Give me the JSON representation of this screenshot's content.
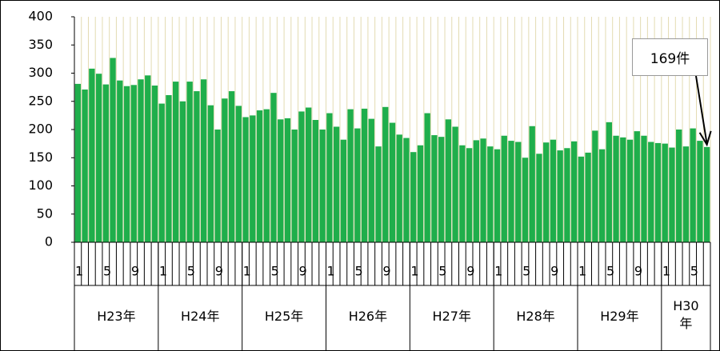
{
  "chart_data": {
    "type": "bar",
    "categories": [
      "1",
      null,
      null,
      null,
      "5",
      null,
      null,
      null,
      "9",
      null,
      null,
      null,
      "1",
      null,
      null,
      null,
      "5",
      null,
      null,
      null,
      "9",
      null,
      null,
      null,
      "1",
      null,
      null,
      null,
      "5",
      null,
      null,
      null,
      "9",
      null,
      null,
      null,
      "1",
      null,
      null,
      null,
      "5",
      null,
      null,
      null,
      "9",
      null,
      null,
      null,
      "1",
      null,
      null,
      null,
      "5",
      null,
      null,
      null,
      "9",
      null,
      null,
      null,
      "1",
      null,
      null,
      null,
      "5",
      null,
      null,
      null,
      "9",
      null,
      null,
      null,
      "1",
      null,
      null,
      null,
      "5",
      null,
      null,
      null,
      "9",
      null,
      null,
      null,
      "1",
      null,
      null,
      null,
      "5",
      null,
      null
    ],
    "years": [
      "H23年",
      "H24年",
      "H25年",
      "H26年",
      "H27年",
      "H28年",
      "H29年",
      "H30年"
    ],
    "values": [
      281,
      271,
      308,
      299,
      280,
      327,
      287,
      277,
      279,
      289,
      296,
      278,
      246,
      261,
      285,
      250,
      285,
      268,
      289,
      243,
      200,
      255,
      268,
      242,
      222,
      225,
      234,
      236,
      265,
      218,
      220,
      200,
      232,
      239,
      217,
      200,
      229,
      205,
      182,
      236,
      202,
      237,
      219,
      170,
      240,
      212,
      191,
      185,
      160,
      172,
      229,
      190,
      187,
      218,
      205,
      172,
      167,
      181,
      184,
      170,
      165,
      189,
      180,
      178,
      150,
      206,
      157,
      177,
      182,
      163,
      167,
      179,
      152,
      159,
      198,
      165,
      213,
      189,
      186,
      182,
      197,
      189,
      178,
      176,
      175,
      168,
      200,
      170,
      202,
      180,
      169
    ],
    "color": "#1fae4b",
    "ylim": [
      0,
      400
    ],
    "yticks": [
      0,
      50,
      100,
      150,
      200,
      250,
      300,
      350,
      400
    ],
    "grid": true,
    "annotation": "169件"
  }
}
